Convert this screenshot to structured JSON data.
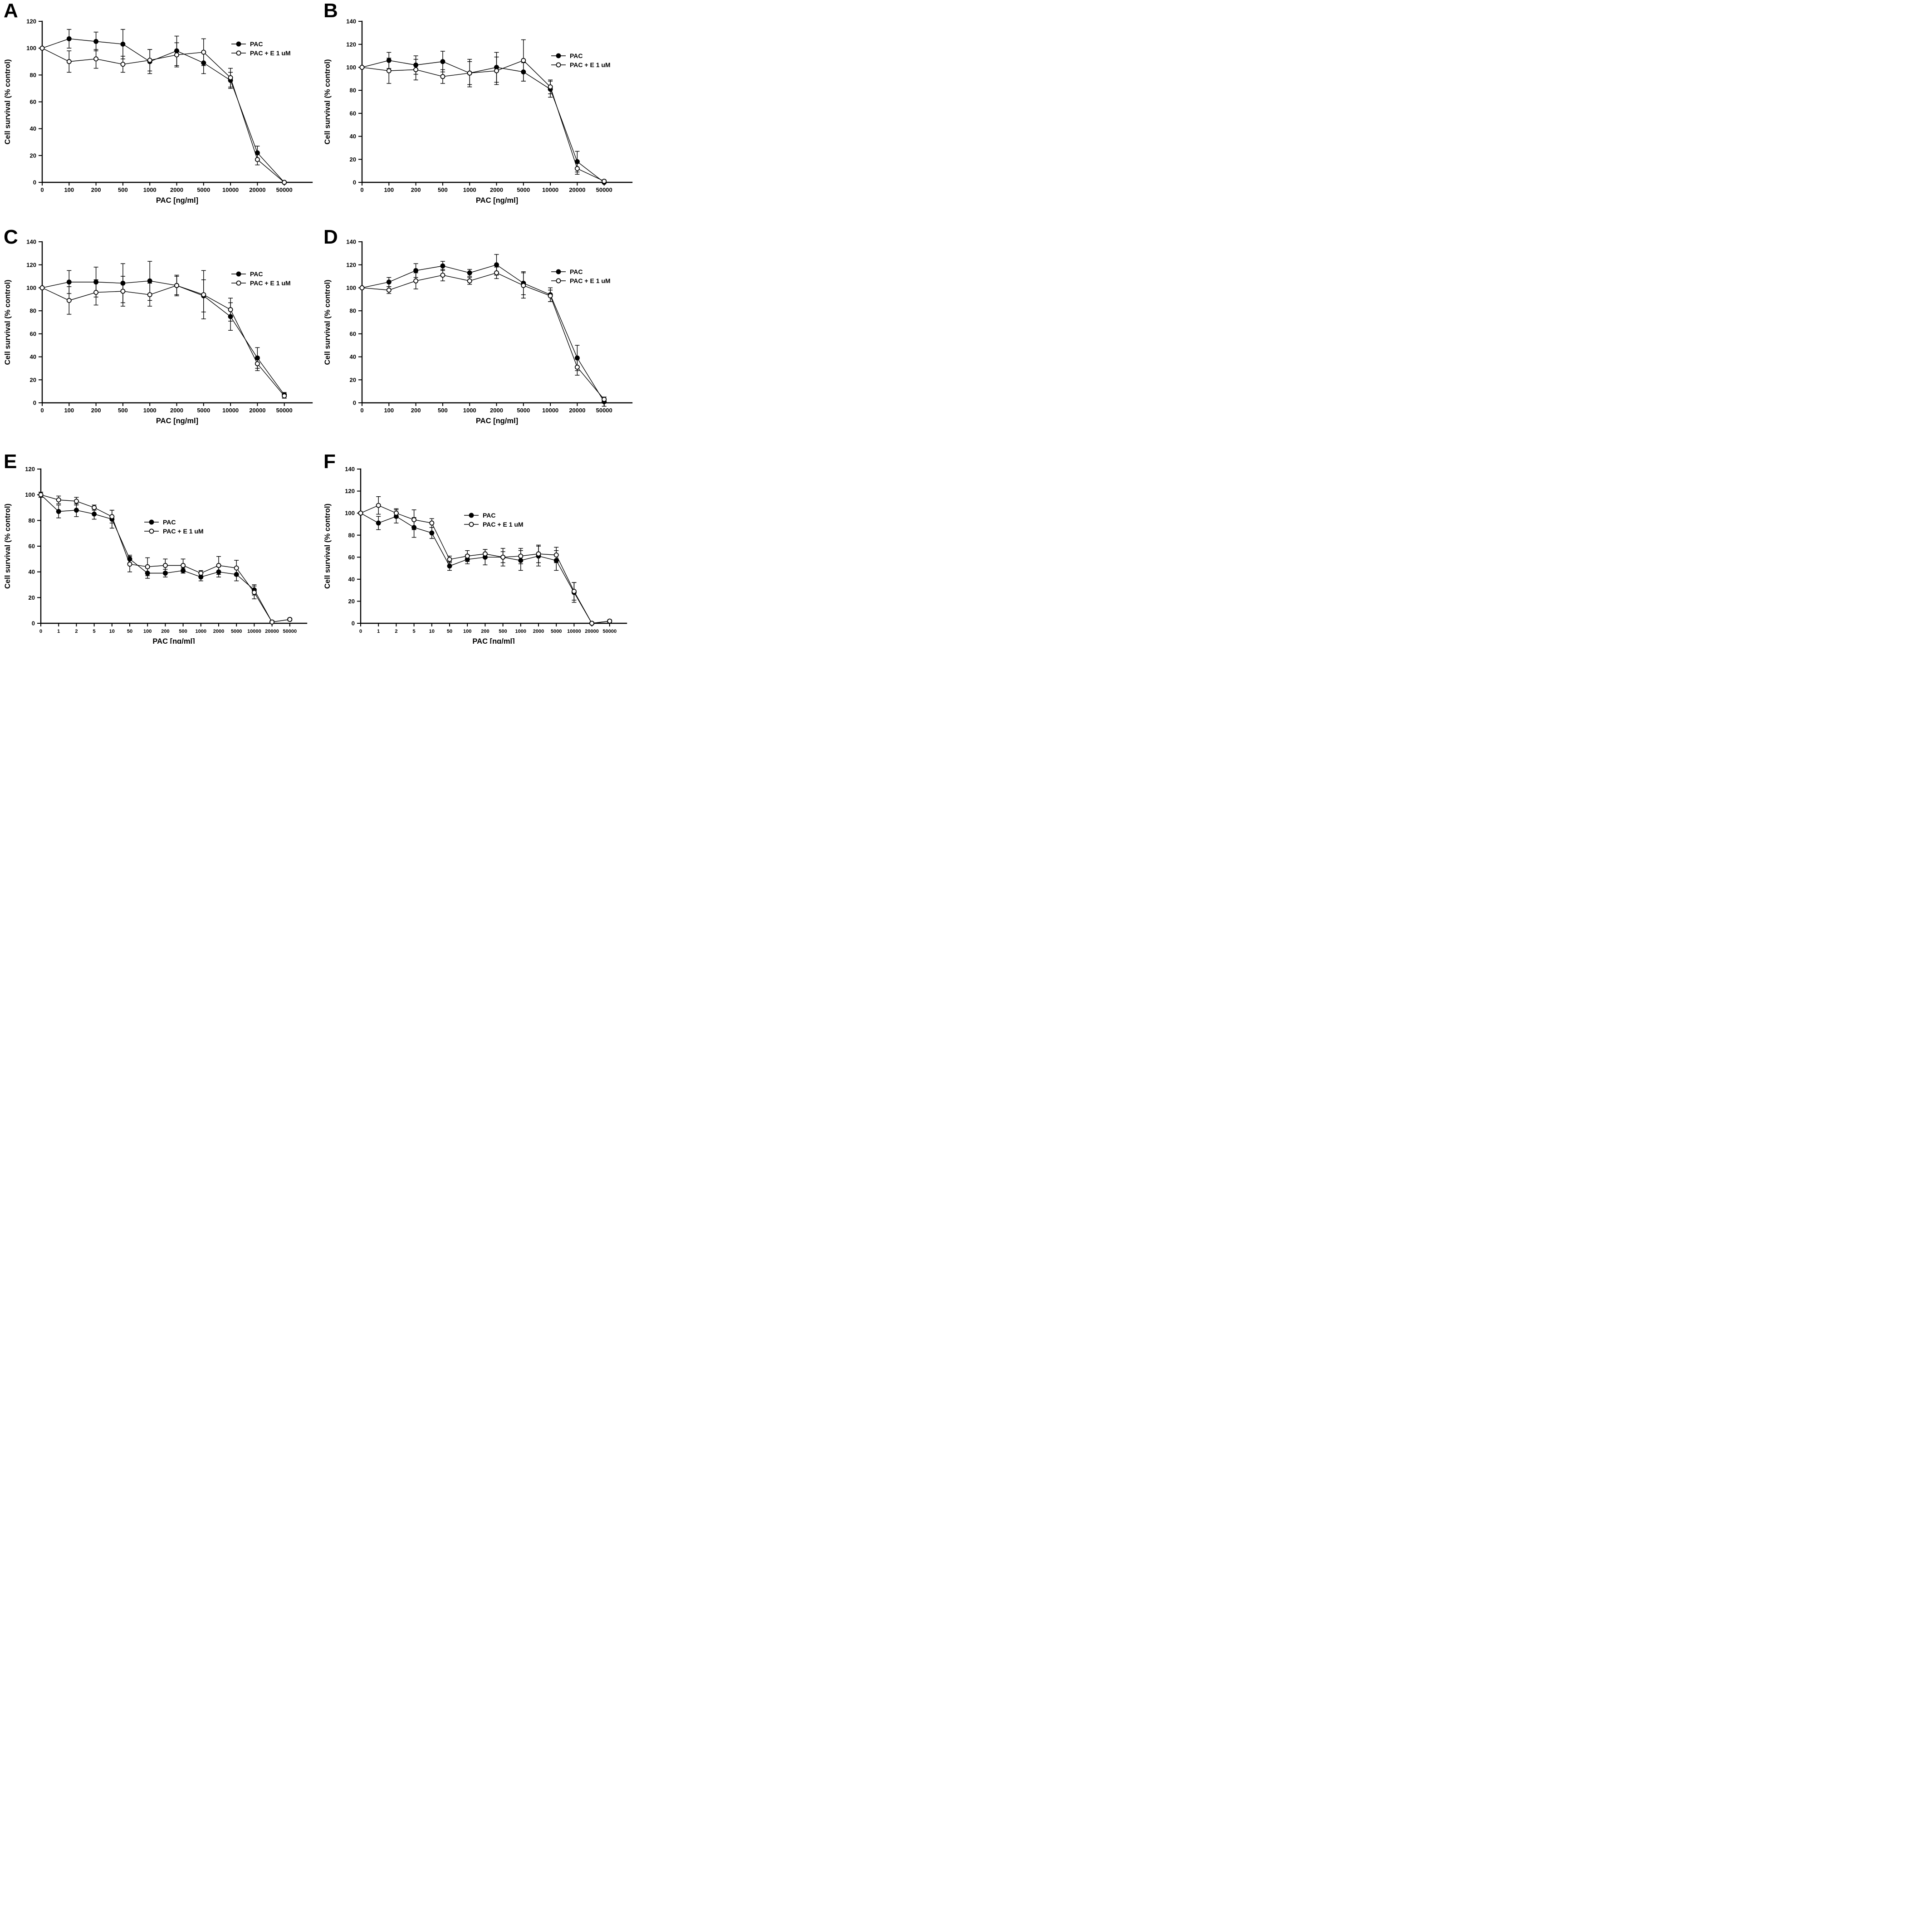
{
  "figure": {
    "background_color": "#ffffff",
    "ink_color": "#000000",
    "panel_order": [
      "A",
      "B",
      "C",
      "D",
      "E",
      "F"
    ]
  },
  "chart_data": [
    {
      "type": "line",
      "panel_label": "A",
      "xlabel": "PAC [ng/ml]",
      "ylabel": "Cell survival (% control)",
      "ylim": [
        0,
        120
      ],
      "yticks": [
        "0",
        "20",
        "40",
        "60",
        "80",
        "100",
        "120"
      ],
      "categories": [
        "0",
        "100",
        "200",
        "500",
        "1000",
        "2000",
        "5000",
        "10000",
        "20000",
        "50000"
      ],
      "grid": "off",
      "legend_position": "inside-right-top",
      "series": [
        {
          "name": "PAC",
          "marker": "filled-circle",
          "values": [
            100,
            107,
            105,
            103,
            90,
            98,
            89,
            76,
            22,
            0
          ],
          "errors": [
            0,
            7,
            7,
            11,
            9,
            11,
            8,
            6,
            5,
            0
          ]
        },
        {
          "name": "PAC + E 1 uM",
          "marker": "open-circle",
          "values": [
            100,
            90,
            92,
            88,
            91,
            95,
            97,
            78,
            17,
            0
          ],
          "errors": [
            0,
            8,
            7,
            6,
            8,
            9,
            10,
            7,
            4,
            0
          ]
        }
      ]
    },
    {
      "type": "line",
      "panel_label": "B",
      "xlabel": "PAC [ng/ml]",
      "ylabel": "Cell survival (% control)",
      "ylim": [
        0,
        140
      ],
      "yticks": [
        "0",
        "20",
        "40",
        "60",
        "80",
        "100",
        "120",
        "140"
      ],
      "categories": [
        "0",
        "100",
        "200",
        "500",
        "1000",
        "2000",
        "5000",
        "10000",
        "20000",
        "50000"
      ],
      "grid": "off",
      "legend_position": "inside-right-top",
      "series": [
        {
          "name": "PAC",
          "marker": "filled-circle",
          "values": [
            100,
            106,
            102,
            105,
            95,
            100,
            96,
            81,
            18,
            0
          ],
          "errors": [
            0,
            7,
            8,
            9,
            10,
            13,
            8,
            7,
            9,
            0
          ]
        },
        {
          "name": "PAC + E 1 uM",
          "marker": "open-circle",
          "values": [
            100,
            97,
            98,
            92,
            95,
            97,
            106,
            83,
            12,
            1
          ],
          "errors": [
            0,
            11,
            9,
            6,
            12,
            12,
            18,
            6,
            5,
            1
          ]
        }
      ]
    },
    {
      "type": "line",
      "panel_label": "C",
      "xlabel": "PAC [ng/ml]",
      "ylabel": "Cell survival (% control)",
      "ylim": [
        0,
        140
      ],
      "yticks": [
        "0",
        "20",
        "40",
        "60",
        "80",
        "100",
        "120",
        "140"
      ],
      "categories": [
        "0",
        "100",
        "200",
        "500",
        "1000",
        "2000",
        "5000",
        "10000",
        "20000",
        "50000"
      ],
      "grid": "off",
      "legend_position": "inside-right-top",
      "series": [
        {
          "name": "PAC",
          "marker": "filled-circle",
          "values": [
            100,
            105,
            105,
            104,
            106,
            102,
            93,
            75,
            39,
            7
          ],
          "errors": [
            0,
            10,
            13,
            17,
            17,
            8,
            14,
            12,
            9,
            2
          ]
        },
        {
          "name": "PAC + E 1 uM",
          "marker": "open-circle",
          "values": [
            100,
            89,
            96,
            97,
            94,
            102,
            94,
            81,
            34,
            6
          ],
          "errors": [
            0,
            12,
            11,
            13,
            10,
            9,
            21,
            10,
            6,
            2
          ]
        }
      ]
    },
    {
      "type": "line",
      "panel_label": "D",
      "xlabel": "PAC [ng/ml]",
      "ylabel": "Cell survival (% control)",
      "ylim": [
        0,
        140
      ],
      "yticks": [
        "0",
        "20",
        "40",
        "60",
        "80",
        "100",
        "120",
        "140"
      ],
      "categories": [
        "0",
        "100",
        "200",
        "500",
        "1000",
        "2000",
        "5000",
        "10000",
        "20000",
        "50000"
      ],
      "grid": "off",
      "legend_position": "inside-right-top",
      "series": [
        {
          "name": "PAC",
          "marker": "filled-circle",
          "values": [
            100,
            105,
            115,
            119,
            113,
            120,
            104,
            94,
            39,
            1
          ],
          "errors": [
            0,
            4,
            6,
            4,
            3,
            9,
            10,
            6,
            11,
            4
          ]
        },
        {
          "name": "PAC + E 1 uM",
          "marker": "open-circle",
          "values": [
            100,
            98,
            106,
            111,
            106,
            113,
            102,
            93,
            31,
            3
          ],
          "errors": [
            0,
            3,
            7,
            5,
            3,
            5,
            11,
            5,
            7,
            2
          ]
        }
      ]
    },
    {
      "type": "line",
      "panel_label": "E",
      "xlabel": "PAC [ng/ml]",
      "ylabel": "Cell survival (% control)",
      "ylim": [
        0,
        120
      ],
      "yticks": [
        "0",
        "20",
        "40",
        "60",
        "80",
        "100",
        "120"
      ],
      "categories": [
        "0",
        "1",
        "2",
        "5",
        "10",
        "50",
        "100",
        "200",
        "500",
        "1000",
        "2000",
        "5000",
        "10000",
        "20000",
        "50000"
      ],
      "grid": "off",
      "legend_position": "inside-center",
      "series": [
        {
          "name": "PAC",
          "marker": "filled-circle",
          "values": [
            100,
            87,
            88,
            85,
            81,
            50,
            39,
            39,
            41,
            36,
            40,
            38,
            26,
            1,
            3
          ],
          "errors": [
            2,
            5,
            5,
            4,
            7,
            3,
            4,
            3,
            2,
            3,
            4,
            5,
            4,
            1,
            1
          ]
        },
        {
          "name": "PAC + E 1 uM",
          "marker": "open-circle",
          "values": [
            100,
            96,
            95,
            90,
            83,
            46,
            44,
            45,
            45,
            39,
            45,
            43,
            24,
            1,
            3
          ],
          "errors": [
            2,
            3,
            3,
            2,
            5,
            6,
            7,
            5,
            5,
            2,
            7,
            6,
            5,
            1,
            1
          ]
        }
      ]
    },
    {
      "type": "line",
      "panel_label": "F",
      "xlabel": "PAC [ng/ml]",
      "ylabel": "Cell survival (% control)",
      "ylim": [
        0,
        140
      ],
      "yticks": [
        "0",
        "20",
        "40",
        "60",
        "80",
        "100",
        "120",
        "140"
      ],
      "categories": [
        "0",
        "1",
        "2",
        "5",
        "10",
        "50",
        "100",
        "200",
        "500",
        "1000",
        "2000",
        "5000",
        "10000",
        "20000",
        "50000"
      ],
      "grid": "off",
      "legend_position": "inside-center",
      "series": [
        {
          "name": "PAC",
          "marker": "filled-circle",
          "values": [
            100,
            91,
            97,
            87,
            82,
            52,
            58,
            60,
            60,
            57,
            61,
            57,
            28,
            0,
            2
          ],
          "errors": [
            0,
            6,
            6,
            9,
            5,
            4,
            4,
            7,
            8,
            9,
            9,
            9,
            9,
            1,
            1
          ]
        },
        {
          "name": "PAC + E 1 uM",
          "marker": "open-circle",
          "values": [
            100,
            107,
            100,
            94,
            91,
            58,
            61,
            63,
            60,
            61,
            63,
            62,
            29,
            0,
            2
          ],
          "errors": [
            0,
            8,
            4,
            9,
            4,
            3,
            5,
            4,
            5,
            7,
            8,
            7,
            8,
            1,
            1
          ]
        }
      ]
    }
  ]
}
